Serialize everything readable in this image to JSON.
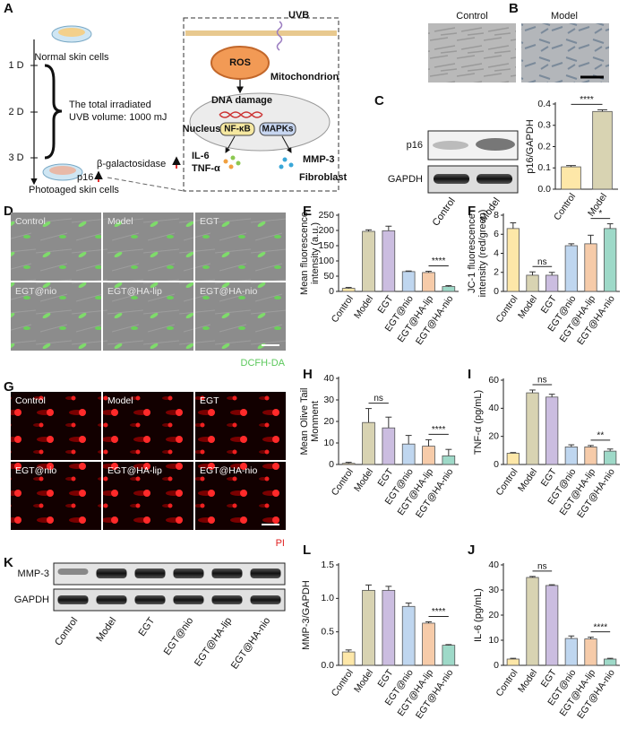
{
  "panel_a": {
    "label": "A",
    "days": [
      "1 D",
      "2 D",
      "3 D"
    ],
    "normal": "Normal skin cells",
    "dose": [
      "The total irradiated",
      "UVB volume: 1000 mJ"
    ],
    "markers": [
      "β-galactosidase",
      "p16"
    ],
    "photoaged": "Photoaged skin cells",
    "uvb": "UVB",
    "ros": "ROS",
    "mito": "Mitochondrion",
    "dna": "DNA damage",
    "nucleus": "Nucleus",
    "nfkb": "NF-κB",
    "mapks": "MAPKs",
    "cytokines": [
      "IL-6",
      "TNF-α"
    ],
    "mmp": "MMP-3",
    "fibroblast": "Fibroblast"
  },
  "panel_b": {
    "label": "B",
    "groups": [
      "Control",
      "Model"
    ]
  },
  "panel_c_blot": {
    "bands": [
      "p16",
      "GAPDH"
    ],
    "lanes": [
      "Control",
      "Model"
    ]
  },
  "panel_d": {
    "label": "D",
    "groups": [
      "Control",
      "Model",
      "EGT",
      "EGT@nio",
      "EGT@HA-lip",
      "EGT@HA-nio"
    ],
    "stain": "DCFH-DA"
  },
  "panel_g": {
    "label": "G",
    "groups": [
      "Control",
      "Model",
      "EGT",
      "EGT@nio",
      "EGT@HA-lip",
      "EGT@HA-nio"
    ],
    "stain": "PI"
  },
  "panel_k": {
    "label": "K",
    "bands": [
      "MMP-3",
      "GAPDH"
    ],
    "lanes": [
      "Control",
      "Model",
      "EGT",
      "EGT@nio",
      "EGT@HA-lip",
      "EGT@HA-nio"
    ]
  },
  "chart_data": [
    {
      "type": "bar",
      "panel": "C",
      "ylabel": [
        "p16/GAPDH"
      ],
      "categories": [
        "Control",
        "Model"
      ],
      "values": [
        0.105,
        0.365
      ],
      "errors": [
        0.006,
        0.008
      ],
      "colors": [
        "#fde7a8",
        "#d8d3b2"
      ],
      "ylim": [
        0,
        0.4
      ],
      "yticks": [
        {
          "value": 0,
          "label": "0.0"
        },
        0.1,
        0.2,
        0.3,
        0.4
      ],
      "annotations": [
        {
          "text": "****",
          "between": [
            "Control",
            "Model"
          ]
        }
      ]
    },
    {
      "type": "bar",
      "panel": "E",
      "ylabel": [
        "Mean fluorescence",
        "intensity (a.u.)"
      ],
      "categories": [
        "Control",
        "Model",
        "EGT",
        "EGT@nio",
        "EGT@HA-lip",
        "EGT@HA-nio"
      ],
      "values": [
        10,
        197,
        199,
        65,
        62,
        16
      ],
      "errors": [
        3,
        5,
        15,
        2,
        4,
        3
      ],
      "colors": [
        "#fde7a8",
        "#d8d3b2",
        "#cbbde0",
        "#bfd6ef",
        "#f6cba9",
        "#9ed9c8"
      ],
      "ylim": [
        0,
        250
      ],
      "yticks": [
        0,
        50,
        100,
        150,
        200,
        250
      ],
      "annotations": [
        {
          "text": "****",
          "between": [
            "EGT@HA-lip",
            "EGT@HA-nio"
          ]
        }
      ]
    },
    {
      "type": "bar",
      "panel": "F",
      "ylabel": [
        "JC-1 fluorescence",
        "intensity (red/green)"
      ],
      "categories": [
        "Control",
        "Model",
        "EGT",
        "EGT@nio",
        "EGT@HA-lip",
        "EGT@HA-nio"
      ],
      "values": [
        6.6,
        1.7,
        1.7,
        4.8,
        5.0,
        6.6
      ],
      "errors": [
        0.6,
        0.35,
        0.3,
        0.2,
        0.9,
        0.5
      ],
      "colors": [
        "#fde7a8",
        "#d8d3b2",
        "#cbbde0",
        "#bfd6ef",
        "#f6cba9",
        "#9ed9c8"
      ],
      "ylim": [
        0,
        8
      ],
      "yticks": [
        0,
        2,
        4,
        6,
        8
      ],
      "annotations": [
        {
          "text": "ns",
          "between": [
            "Model",
            "EGT"
          ]
        },
        {
          "text": "*",
          "between": [
            "EGT@HA-lip",
            "EGT@HA-nio"
          ]
        }
      ]
    },
    {
      "type": "bar",
      "panel": "H",
      "ylabel": [
        "Mean Olive Tail",
        "Monment"
      ],
      "categories": [
        "Control",
        "Model",
        "EGT",
        "EGT@nio",
        "EGT@HA-lip",
        "EGT@HA-nio"
      ],
      "values": [
        0.5,
        19.5,
        17,
        9.5,
        8.5,
        4
      ],
      "errors": [
        0.5,
        6.5,
        5,
        4,
        3,
        3
      ],
      "colors": [
        "#fde7a8",
        "#d8d3b2",
        "#cbbde0",
        "#bfd6ef",
        "#f6cba9",
        "#9ed9c8"
      ],
      "ylim": [
        0,
        40
      ],
      "yticks": [
        0,
        10,
        20,
        30,
        40
      ],
      "annotations": [
        {
          "text": "ns",
          "between": [
            "Model",
            "EGT"
          ]
        },
        {
          "text": "****",
          "between": [
            "EGT@HA-lip",
            "EGT@HA-nio"
          ]
        }
      ]
    },
    {
      "type": "bar",
      "panel": "I",
      "ylabel": [
        "TNF-α  (pg/mL)"
      ],
      "categories": [
        "Control",
        "Model",
        "EGT",
        "EGT@nio",
        "EGT@HA-lip",
        "EGT@HA-nio"
      ],
      "values": [
        8,
        51,
        48,
        12.5,
        12.5,
        9.5
      ],
      "errors": [
        0.5,
        2,
        2,
        1.5,
        1,
        1.5
      ],
      "colors": [
        "#fde7a8",
        "#d8d3b2",
        "#cbbde0",
        "#bfd6ef",
        "#f6cba9",
        "#9ed9c8"
      ],
      "ylim": [
        0,
        60
      ],
      "yticks": [
        0,
        20,
        40,
        60
      ],
      "annotations": [
        {
          "text": "ns",
          "between": [
            "Model",
            "EGT"
          ]
        },
        {
          "text": "**",
          "between": [
            "EGT@HA-lip",
            "EGT@HA-nio"
          ]
        }
      ]
    },
    {
      "type": "bar",
      "panel": "L",
      "ylabel": [
        "MMP-3/GAPDH"
      ],
      "categories": [
        "Control",
        "Model",
        "EGT",
        "EGT@nio",
        "EGT@HA-lip",
        "EGT@HA-nio"
      ],
      "values": [
        0.2,
        1.12,
        1.12,
        0.88,
        0.63,
        0.3
      ],
      "errors": [
        0.03,
        0.08,
        0.06,
        0.05,
        0.02,
        0.01
      ],
      "colors": [
        "#fde7a8",
        "#d8d3b2",
        "#cbbde0",
        "#bfd6ef",
        "#f6cba9",
        "#9ed9c8"
      ],
      "ylim": [
        0,
        1.5
      ],
      "yticks": [
        {
          "value": 0,
          "label": "0.0"
        },
        0.5,
        {
          "value": 1,
          "label": "1.0"
        },
        1.5
      ],
      "annotations": [
        {
          "text": "****",
          "between": [
            "EGT@HA-lip",
            "EGT@HA-nio"
          ]
        }
      ]
    },
    {
      "type": "bar",
      "panel": "J",
      "ylabel": [
        "IL-6  (pg/mL)"
      ],
      "categories": [
        "Control",
        "Model",
        "EGT",
        "EGT@nio",
        "EGT@HA-lip",
        "EGT@HA-nio"
      ],
      "values": [
        2.5,
        35,
        31.8,
        10.7,
        10.5,
        2.5
      ],
      "errors": [
        0.3,
        0.4,
        0.3,
        1,
        0.7,
        0.3
      ],
      "colors": [
        "#fde7a8",
        "#d8d3b2",
        "#cbbde0",
        "#bfd6ef",
        "#f6cba9",
        "#9ed9c8"
      ],
      "ylim": [
        0,
        40
      ],
      "yticks": [
        0,
        10,
        20,
        30,
        40
      ],
      "annotations": [
        {
          "text": "ns",
          "between": [
            "Model",
            "EGT"
          ]
        },
        {
          "text": "****",
          "between": [
            "EGT@HA-lip",
            "EGT@HA-nio"
          ]
        }
      ]
    }
  ]
}
